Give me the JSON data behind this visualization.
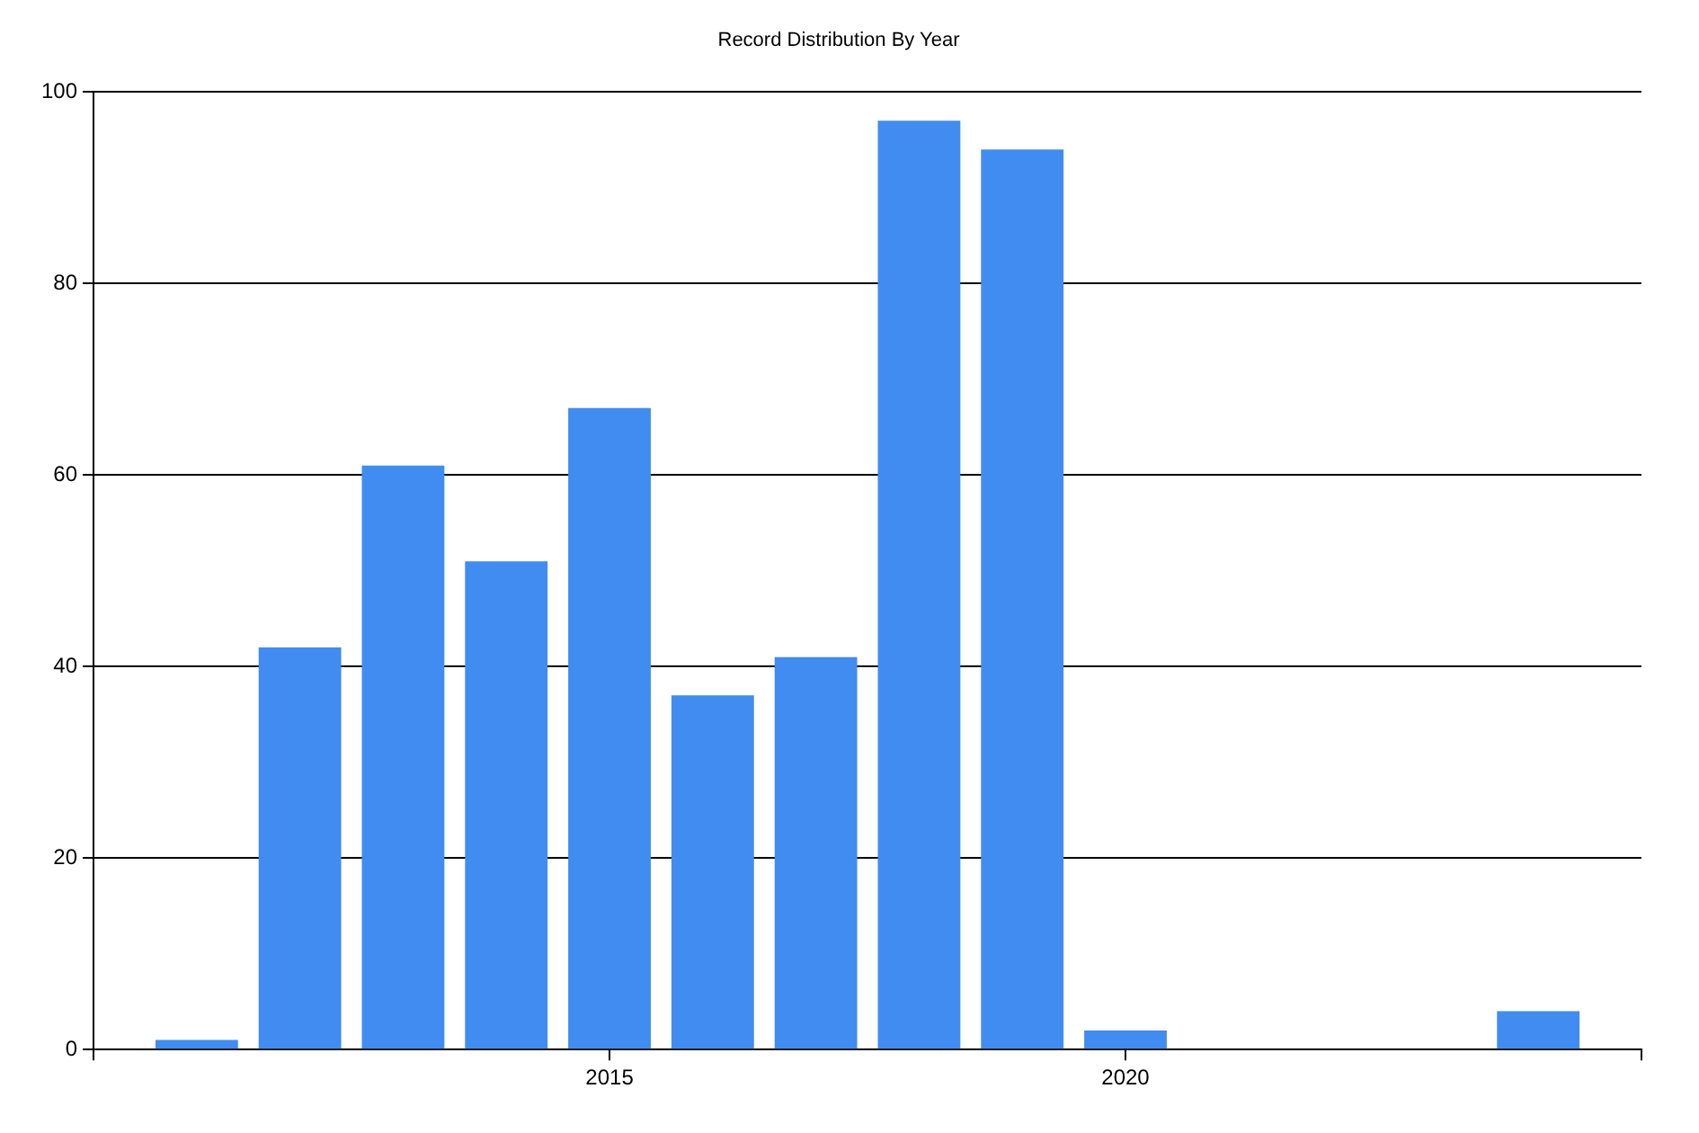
{
  "chart_data": {
    "type": "bar",
    "title": "Record Distribution By Year",
    "x": [
      2011,
      2012,
      2013,
      2014,
      2015,
      2016,
      2017,
      2018,
      2019,
      2020,
      2024
    ],
    "values": [
      1,
      42,
      61,
      51,
      67,
      37,
      41,
      97,
      94,
      2,
      4
    ],
    "color": "#418cf0",
    "xlim": [
      2010,
      2025
    ],
    "xticks": [
      {
        "value": 2010,
        "label": null
      },
      2015,
      2020,
      {
        "value": 2025,
        "label": null
      }
    ],
    "ylim": [
      0,
      100
    ],
    "yticks": [
      0,
      20,
      40,
      60,
      80,
      100
    ],
    "grid": "y"
  }
}
